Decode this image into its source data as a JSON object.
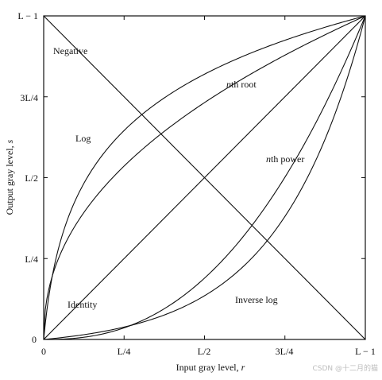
{
  "diagram": {
    "axis": {
      "x_title": "Input gray level, ",
      "x_var": "r",
      "y_title": "Output gray level, ",
      "y_var": "s",
      "tick_labels": [
        "0",
        "L/4",
        "L/2",
        "3L/4",
        "L − 1"
      ],
      "tick_values": [
        0,
        0.25,
        0.5,
        0.75,
        1
      ]
    },
    "curves": [
      {
        "id": "negative",
        "label": "Negative",
        "shape": "s = 1 - r"
      },
      {
        "id": "log",
        "label": "Log",
        "shape": "log"
      },
      {
        "id": "nth-root",
        "label_prefix": "n",
        "label_rest": "th root",
        "shape": "root"
      },
      {
        "id": "identity",
        "label": "Identity",
        "shape": "s = r"
      },
      {
        "id": "nth-power",
        "label_prefix": "n",
        "label_rest": "th power",
        "shape": "power"
      },
      {
        "id": "inverse-log",
        "label": "Inverse log",
        "shape": "inverse-log"
      }
    ],
    "watermark": "CSDN @十二月的猫"
  }
}
